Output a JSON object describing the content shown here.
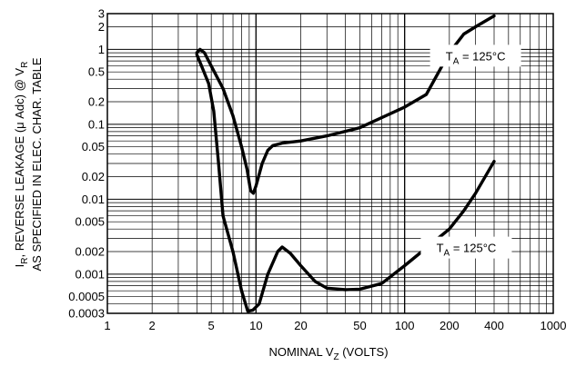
{
  "chart_data": {
    "type": "line",
    "xscale": "log",
    "yscale": "log",
    "xlim": [
      1,
      1000
    ],
    "ylim": [
      0.0003,
      3
    ],
    "grid": true,
    "xlabel": {
      "text": "NOMINAL V",
      "sub": "Z",
      "suffix": " (VOLTS)"
    },
    "ylabel": {
      "line1_pre": "I",
      "line1_sub": "R",
      "line1_mid": ", REVERSE LEAKAGE (μ Adc) @ V",
      "line1_sub2": "R",
      "line2": "AS SPECIFIED IN ELEC. CHAR. TABLE"
    },
    "x_ticks": [
      {
        "value": 1,
        "label": "1"
      },
      {
        "value": 2,
        "label": "2"
      },
      {
        "value": 5,
        "label": "5"
      },
      {
        "value": 10,
        "label": "10"
      },
      {
        "value": 20,
        "label": "20"
      },
      {
        "value": 50,
        "label": "50"
      },
      {
        "value": 100,
        "label": "100"
      },
      {
        "value": 200,
        "label": "200"
      },
      {
        "value": 400,
        "label": "400"
      },
      {
        "value": 1000,
        "label": "1000"
      }
    ],
    "y_ticks": [
      {
        "value": 3,
        "label": "3"
      },
      {
        "value": 2,
        "label": "2"
      },
      {
        "value": 1,
        "label": "1"
      },
      {
        "value": 0.5,
        "label": "0.5"
      },
      {
        "value": 0.2,
        "label": "0.2"
      },
      {
        "value": 0.1,
        "label": "0.1"
      },
      {
        "value": 0.05,
        "label": "0.05"
      },
      {
        "value": 0.02,
        "label": "0.02"
      },
      {
        "value": 0.01,
        "label": "0.01"
      },
      {
        "value": 0.005,
        "label": "0.005"
      },
      {
        "value": 0.002,
        "label": "0.002"
      },
      {
        "value": 0.001,
        "label": "0.001"
      },
      {
        "value": 0.0005,
        "label": "0.0005"
      },
      {
        "value": 0.0003,
        "label": "0.0003"
      }
    ],
    "series": [
      {
        "label": {
          "pre": "T",
          "sub": "A",
          "post": " = 125°C"
        },
        "label_at": [
          300,
          0.8
        ],
        "points": [
          [
            4,
            0.9
          ],
          [
            4.2,
            1.0
          ],
          [
            4.5,
            0.9
          ],
          [
            5,
            0.6
          ],
          [
            6,
            0.3
          ],
          [
            7,
            0.13
          ],
          [
            8,
            0.05
          ],
          [
            8.7,
            0.025
          ],
          [
            9.2,
            0.013
          ],
          [
            9.6,
            0.012
          ],
          [
            10,
            0.015
          ],
          [
            11,
            0.03
          ],
          [
            12,
            0.045
          ],
          [
            13,
            0.052
          ],
          [
            15,
            0.056
          ],
          [
            20,
            0.06
          ],
          [
            30,
            0.07
          ],
          [
            50,
            0.09
          ],
          [
            100,
            0.17
          ],
          [
            140,
            0.25
          ],
          [
            200,
            0.9
          ],
          [
            250,
            1.6
          ],
          [
            300,
            2.0
          ],
          [
            400,
            2.8
          ]
        ]
      },
      {
        "label": {
          "pre": "T",
          "sub": "A",
          "post": " = 125°C"
        },
        "label_at": [
          260,
          0.0022
        ],
        "points": [
          [
            4,
            0.85
          ],
          [
            4.3,
            0.6
          ],
          [
            4.8,
            0.35
          ],
          [
            5.2,
            0.15
          ],
          [
            5.6,
            0.03
          ],
          [
            6,
            0.006
          ],
          [
            7,
            0.002
          ],
          [
            8,
            0.0006
          ],
          [
            8.8,
            0.00032
          ],
          [
            9.5,
            0.00033
          ],
          [
            10.5,
            0.0004
          ],
          [
            12,
            0.001
          ],
          [
            14,
            0.002
          ],
          [
            15,
            0.0023
          ],
          [
            17,
            0.0019
          ],
          [
            20,
            0.0013
          ],
          [
            25,
            0.0008
          ],
          [
            30,
            0.00065
          ],
          [
            40,
            0.00062
          ],
          [
            50,
            0.00063
          ],
          [
            70,
            0.00075
          ],
          [
            100,
            0.0013
          ],
          [
            150,
            0.0025
          ],
          [
            200,
            0.004
          ],
          [
            250,
            0.007
          ],
          [
            300,
            0.012
          ],
          [
            400,
            0.032
          ]
        ]
      }
    ]
  }
}
